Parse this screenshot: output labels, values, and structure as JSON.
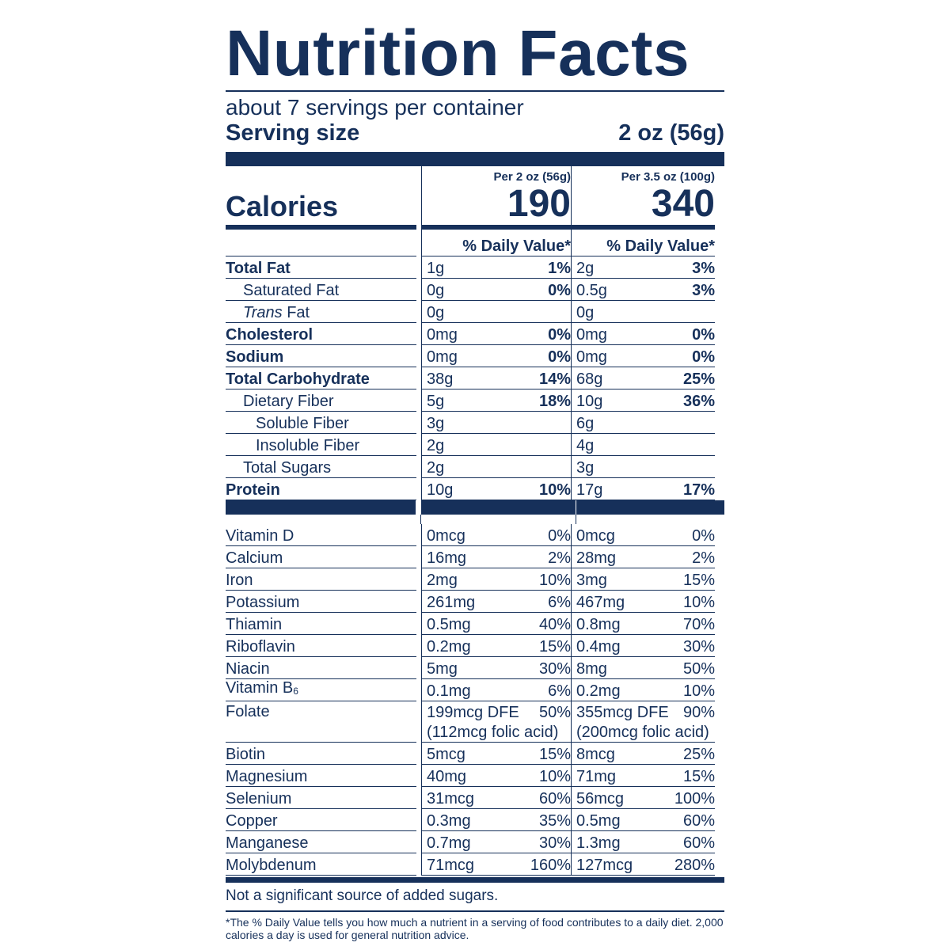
{
  "label": {
    "title": "Nutrition Facts",
    "servings_per_container": "about 7 servings per container",
    "serving_size_label": "Serving size",
    "serving_size_value": "2 oz (56g)",
    "calories_label": "Calories",
    "columns": [
      {
        "header": "Per 2 oz (56g)",
        "calories": "190",
        "dv_header": "% Daily Value*"
      },
      {
        "header": "Per 3.5 oz (100g)",
        "calories": "340",
        "dv_header": "% Daily Value*"
      }
    ],
    "nutrients": [
      {
        "name": "Total Fat",
        "style": "bold",
        "indent": 0,
        "c1": {
          "amount": "1g",
          "dv": "1%"
        },
        "c2": {
          "amount": "2g",
          "dv": "3%"
        }
      },
      {
        "name": "Saturated Fat",
        "style": "normal",
        "indent": 1,
        "c1": {
          "amount": "0g",
          "dv": "0%"
        },
        "c2": {
          "amount": "0.5g",
          "dv": "3%"
        }
      },
      {
        "name": "Fat",
        "prefix": "Trans",
        "style": "normal",
        "indent": 1,
        "c1": {
          "amount": "0g",
          "dv": ""
        },
        "c2": {
          "amount": "0g",
          "dv": ""
        }
      },
      {
        "name": "Cholesterol",
        "style": "bold",
        "indent": 0,
        "c1": {
          "amount": "0mg",
          "dv": "0%"
        },
        "c2": {
          "amount": "0mg",
          "dv": "0%"
        }
      },
      {
        "name": "Sodium",
        "style": "bold",
        "indent": 0,
        "c1": {
          "amount": "0mg",
          "dv": "0%"
        },
        "c2": {
          "amount": "0mg",
          "dv": "0%"
        }
      },
      {
        "name": "Total Carbohydrate",
        "style": "bold",
        "indent": 0,
        "c1": {
          "amount": "38g",
          "dv": "14%"
        },
        "c2": {
          "amount": "68g",
          "dv": "25%"
        }
      },
      {
        "name": "Dietary Fiber",
        "style": "normal",
        "indent": 1,
        "c1": {
          "amount": "5g",
          "dv": "18%"
        },
        "c2": {
          "amount": "10g",
          "dv": "36%"
        }
      },
      {
        "name": "Soluble Fiber",
        "style": "normal",
        "indent": 2,
        "c1": {
          "amount": "3g",
          "dv": ""
        },
        "c2": {
          "amount": "6g",
          "dv": ""
        }
      },
      {
        "name": "Insoluble Fiber",
        "style": "normal",
        "indent": 2,
        "c1": {
          "amount": "2g",
          "dv": ""
        },
        "c2": {
          "amount": "4g",
          "dv": ""
        }
      },
      {
        "name": "Total Sugars",
        "style": "normal",
        "indent": 1,
        "c1": {
          "amount": "2g",
          "dv": ""
        },
        "c2": {
          "amount": "3g",
          "dv": ""
        }
      },
      {
        "name": "Protein",
        "style": "bold",
        "indent": 0,
        "c1": {
          "amount": "10g",
          "dv": "10%"
        },
        "c2": {
          "amount": "17g",
          "dv": "17%"
        }
      }
    ],
    "vitamins": [
      {
        "name": "Vitamin D",
        "c1": {
          "amount": "0mcg",
          "dv": "0%"
        },
        "c2": {
          "amount": "0mcg",
          "dv": "0%"
        }
      },
      {
        "name": "Calcium",
        "c1": {
          "amount": "16mg",
          "dv": "2%"
        },
        "c2": {
          "amount": "28mg",
          "dv": "2%"
        }
      },
      {
        "name": "Iron",
        "c1": {
          "amount": "2mg",
          "dv": "10%"
        },
        "c2": {
          "amount": "3mg",
          "dv": "15%"
        }
      },
      {
        "name": "Potassium",
        "c1": {
          "amount": "261mg",
          "dv": "6%"
        },
        "c2": {
          "amount": "467mg",
          "dv": "10%"
        }
      },
      {
        "name": "Thiamin",
        "c1": {
          "amount": "0.5mg",
          "dv": "40%"
        },
        "c2": {
          "amount": "0.8mg",
          "dv": "70%"
        }
      },
      {
        "name": "Riboflavin",
        "c1": {
          "amount": "0.2mg",
          "dv": "15%"
        },
        "c2": {
          "amount": "0.4mg",
          "dv": "30%"
        }
      },
      {
        "name": "Niacin",
        "c1": {
          "amount": "5mg",
          "dv": "30%"
        },
        "c2": {
          "amount": "8mg",
          "dv": "50%"
        }
      },
      {
        "name": "Vitamin B",
        "subscript": "6",
        "c1": {
          "amount": "0.1mg",
          "dv": "6%"
        },
        "c2": {
          "amount": "0.2mg",
          "dv": "10%"
        }
      },
      {
        "name": "Folate",
        "c1": {
          "amount": "199mcg DFE",
          "dv": "50%",
          "note": "(112mcg folic acid)"
        },
        "c2": {
          "amount": "355mcg DFE",
          "dv": "90%",
          "note": "(200mcg folic acid)"
        }
      },
      {
        "name": "Biotin",
        "c1": {
          "amount": "5mcg",
          "dv": "15%"
        },
        "c2": {
          "amount": "8mcg",
          "dv": "25%"
        }
      },
      {
        "name": "Magnesium",
        "c1": {
          "amount": "40mg",
          "dv": "10%"
        },
        "c2": {
          "amount": "71mg",
          "dv": "15%"
        }
      },
      {
        "name": "Selenium",
        "c1": {
          "amount": "31mcg",
          "dv": "60%"
        },
        "c2": {
          "amount": "56mcg",
          "dv": "100%"
        }
      },
      {
        "name": "Copper",
        "c1": {
          "amount": "0.3mg",
          "dv": "35%"
        },
        "c2": {
          "amount": "0.5mg",
          "dv": "60%"
        }
      },
      {
        "name": "Manganese",
        "c1": {
          "amount": "0.7mg",
          "dv": "30%"
        },
        "c2": {
          "amount": "1.3mg",
          "dv": "60%"
        }
      },
      {
        "name": "Molybdenum",
        "c1": {
          "amount": "71mcg",
          "dv": "160%"
        },
        "c2": {
          "amount": "127mcg",
          "dv": "280%"
        }
      }
    ],
    "footnote_sugars": "Not a significant source of added sugars.",
    "footnote_dv": "*The % Daily Value tells you how much a nutrient in a serving of food contributes to a daily diet. 2,000 calories a day is used for general nutrition advice."
  },
  "colors": {
    "ink": "#16305a",
    "background": "#ffffff"
  }
}
